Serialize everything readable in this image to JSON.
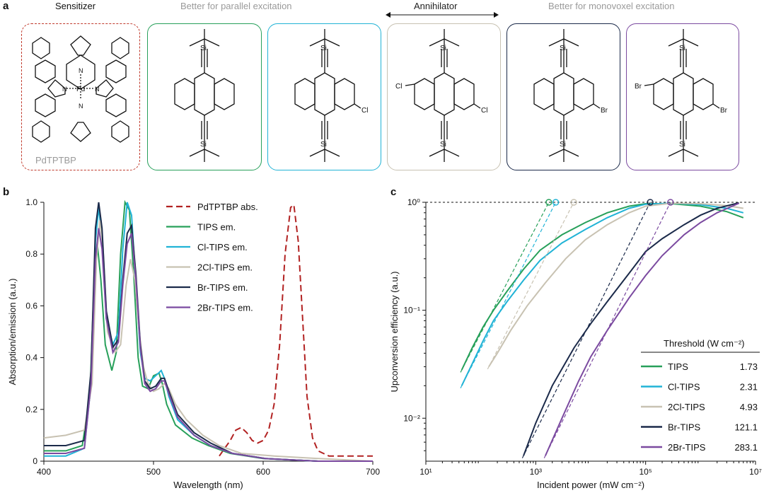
{
  "panel_a": {
    "letter": "a",
    "sensitizer_header": "Sensitizer",
    "parallel_header": "Better for parallel excitation",
    "annihilator_header": "Annihilator",
    "monovoxel_header": "Better for monovoxel excitation",
    "sensitizer_label": "PdTPTBP",
    "atoms": {
      "pd": "Pd",
      "n": "N",
      "si": "Si",
      "cl": "Cl",
      "br": "Br"
    },
    "molecules": [
      {
        "id": "PdTPTBP",
        "color": "#c0392b"
      },
      {
        "id": "TIPS",
        "color": "#27a05a"
      },
      {
        "id": "Cl-TIPS",
        "color": "#21b3d6"
      },
      {
        "id": "2Cl-TIPS",
        "color": "#c8c2b2"
      },
      {
        "id": "Br-TIPS",
        "color": "#1b2a4a"
      },
      {
        "id": "2Br-TIPS",
        "color": "#7b4aa0"
      }
    ]
  },
  "chart_data": [
    {
      "panel": "b",
      "type": "line",
      "xlabel": "Wavelength (nm)",
      "ylabel": "Absorption/emission (a.u.)",
      "xlim": [
        400,
        700
      ],
      "ylim": [
        0,
        1.0
      ],
      "xticks": [
        "400",
        "500",
        "600",
        "700"
      ],
      "yticks": [
        "0",
        "0.2",
        "0.4",
        "0.6",
        "0.8",
        "1.0"
      ],
      "series": [
        {
          "name": "PdTPTBP abs.",
          "color": "#b22222",
          "dashed": true,
          "x": [
            560,
            570,
            575,
            580,
            585,
            590,
            595,
            600,
            605,
            610,
            615,
            620,
            625,
            628,
            632,
            636,
            640,
            645,
            650,
            660,
            680,
            700
          ],
          "y": [
            0.02,
            0.08,
            0.12,
            0.13,
            0.11,
            0.08,
            0.07,
            0.08,
            0.12,
            0.22,
            0.45,
            0.8,
            0.98,
            0.99,
            0.85,
            0.55,
            0.25,
            0.09,
            0.04,
            0.02,
            0.02,
            0.02
          ]
        },
        {
          "name": "TIPS em.",
          "color": "#27a05a",
          "dashed": false,
          "x": [
            400,
            420,
            435,
            442,
            446,
            449,
            452,
            456,
            462,
            466,
            470,
            474,
            478,
            482,
            486,
            490,
            495,
            500,
            505,
            508,
            512,
            520,
            535,
            550,
            570,
            600,
            650,
            700
          ],
          "y": [
            0.04,
            0.04,
            0.06,
            0.25,
            0.72,
            0.83,
            0.7,
            0.45,
            0.35,
            0.42,
            0.8,
            1.0,
            0.97,
            0.72,
            0.4,
            0.29,
            0.28,
            0.33,
            0.34,
            0.3,
            0.22,
            0.14,
            0.09,
            0.06,
            0.03,
            0.01,
            0.0,
            0.0
          ]
        },
        {
          "name": "Cl-TIPS em.",
          "color": "#21b3d6",
          "dashed": false,
          "x": [
            400,
            420,
            437,
            443,
            447,
            450,
            453,
            457,
            463,
            468,
            472,
            476,
            480,
            484,
            488,
            492,
            497,
            502,
            507,
            510,
            514,
            522,
            537,
            552,
            572,
            602,
            650,
            700
          ],
          "y": [
            0.02,
            0.02,
            0.05,
            0.3,
            0.85,
            0.98,
            0.86,
            0.55,
            0.45,
            0.5,
            0.82,
            1.0,
            0.95,
            0.68,
            0.42,
            0.32,
            0.31,
            0.33,
            0.35,
            0.32,
            0.25,
            0.16,
            0.1,
            0.06,
            0.03,
            0.01,
            0.0,
            0.0
          ]
        },
        {
          "name": "2Cl-TIPS em.",
          "color": "#c8c2b2",
          "dashed": false,
          "x": [
            400,
            420,
            437,
            444,
            448,
            451,
            454,
            458,
            465,
            470,
            475,
            479,
            483,
            487,
            491,
            495,
            500,
            505,
            510,
            514,
            520,
            530,
            545,
            560,
            580,
            610,
            650,
            700
          ],
          "y": [
            0.09,
            0.1,
            0.12,
            0.3,
            0.78,
            0.93,
            0.82,
            0.5,
            0.42,
            0.45,
            0.68,
            0.78,
            0.7,
            0.5,
            0.36,
            0.3,
            0.27,
            0.28,
            0.3,
            0.28,
            0.22,
            0.16,
            0.1,
            0.06,
            0.03,
            0.02,
            0.01,
            0.0
          ]
        },
        {
          "name": "Br-TIPS em.",
          "color": "#1b2a4a",
          "dashed": false,
          "x": [
            400,
            420,
            437,
            443,
            447,
            450,
            453,
            457,
            463,
            468,
            472,
            476,
            480,
            484,
            488,
            492,
            497,
            502,
            507,
            510,
            514,
            522,
            537,
            552,
            572,
            602,
            650,
            700
          ],
          "y": [
            0.06,
            0.06,
            0.08,
            0.35,
            0.9,
            1.0,
            0.9,
            0.58,
            0.44,
            0.47,
            0.7,
            0.88,
            0.91,
            0.72,
            0.45,
            0.31,
            0.28,
            0.29,
            0.32,
            0.32,
            0.27,
            0.18,
            0.11,
            0.07,
            0.03,
            0.01,
            0.0,
            0.0
          ]
        },
        {
          "name": "2Br-TIPS em.",
          "color": "#7b4aa0",
          "dashed": false,
          "x": [
            400,
            420,
            437,
            443,
            447,
            450,
            453,
            457,
            463,
            468,
            472,
            476,
            480,
            484,
            488,
            492,
            497,
            502,
            507,
            510,
            514,
            522,
            537,
            552,
            572,
            602,
            650,
            700
          ],
          "y": [
            0.03,
            0.03,
            0.05,
            0.3,
            0.78,
            0.9,
            0.82,
            0.55,
            0.42,
            0.46,
            0.68,
            0.84,
            0.88,
            0.7,
            0.44,
            0.3,
            0.27,
            0.28,
            0.31,
            0.31,
            0.26,
            0.17,
            0.1,
            0.06,
            0.03,
            0.01,
            0.0,
            0.0
          ]
        }
      ],
      "legend": [
        "PdTPTBP abs.",
        "TIPS em.",
        "Cl-TIPS em.",
        "2Cl-TIPS em.",
        "Br-TIPS em.",
        "2Br-TIPS em."
      ],
      "legend_position": "top-right"
    },
    {
      "panel": "c",
      "type": "line",
      "xscale": "log",
      "yscale": "log",
      "xlabel": "Incident power (mW cm⁻²)",
      "ylabel": "Upconversion efficiency (a.u.)",
      "xlim": [
        10,
        10000000
      ],
      "ylim": [
        0.004,
        1.0
      ],
      "xtick_values": [
        10,
        1000,
        100000,
        10000000
      ],
      "xtick_labels": [
        "10¹",
        "10³",
        "10⁵",
        "10⁷"
      ],
      "ytick_values": [
        0.01,
        0.1,
        1
      ],
      "ytick_labels": [
        "10⁻²",
        "10⁻¹",
        "10⁰"
      ],
      "series": [
        {
          "name": "TIPS",
          "color": "#27a05a",
          "threshold": "1.73",
          "x": [
            45,
            70,
            110,
            170,
            300,
            600,
            1200,
            3000,
            8000,
            20000,
            50000,
            100000,
            300000,
            1000000,
            3000000,
            6000000
          ],
          "y": [
            0.028,
            0.045,
            0.07,
            0.1,
            0.15,
            0.24,
            0.36,
            0.5,
            0.65,
            0.8,
            0.92,
            0.97,
            0.97,
            0.92,
            0.82,
            0.72
          ]
        },
        {
          "name": "Cl-TIPS",
          "color": "#21b3d6",
          "threshold": "2.31",
          "x": [
            45,
            70,
            110,
            170,
            300,
            600,
            1200,
            3000,
            8000,
            20000,
            50000,
            100000,
            300000,
            1000000,
            3000000,
            6000000
          ],
          "y": [
            0.02,
            0.032,
            0.052,
            0.08,
            0.12,
            0.19,
            0.29,
            0.42,
            0.56,
            0.72,
            0.88,
            0.96,
            0.98,
            0.95,
            0.88,
            0.8
          ]
        },
        {
          "name": "2Cl-TIPS",
          "color": "#c8c2b2",
          "threshold": "4.93",
          "x": [
            140,
            200,
            350,
            700,
            1500,
            3500,
            8000,
            20000,
            50000,
            100000,
            300000,
            1000000,
            3000000,
            6000000
          ],
          "y": [
            0.03,
            0.04,
            0.065,
            0.11,
            0.18,
            0.3,
            0.45,
            0.62,
            0.8,
            0.92,
            0.98,
            0.97,
            0.93,
            0.88
          ]
        },
        {
          "name": "Br-TIPS",
          "color": "#1b2a4a",
          "threshold": "121.1",
          "x": [
            600,
            1000,
            2000,
            5000,
            10000,
            20000,
            50000,
            100000,
            200000,
            500000,
            1000000,
            2000000,
            5000000
          ],
          "y": [
            0.0045,
            0.009,
            0.02,
            0.045,
            0.075,
            0.12,
            0.22,
            0.35,
            0.46,
            0.62,
            0.76,
            0.88,
            0.99
          ]
        },
        {
          "name": "2Br-TIPS",
          "color": "#7b4aa0",
          "threshold": "283.1",
          "x": [
            1500,
            3000,
            6000,
            10000,
            20000,
            50000,
            100000,
            200000,
            500000,
            1000000,
            2000000,
            5000000
          ],
          "y": [
            0.0045,
            0.01,
            0.022,
            0.037,
            0.065,
            0.13,
            0.21,
            0.32,
            0.5,
            0.65,
            0.8,
            0.98
          ]
        }
      ],
      "dashed_reference_y": 1,
      "legend_title": "Threshold (W cm⁻²)",
      "legend_position": "bottom-right"
    }
  ]
}
